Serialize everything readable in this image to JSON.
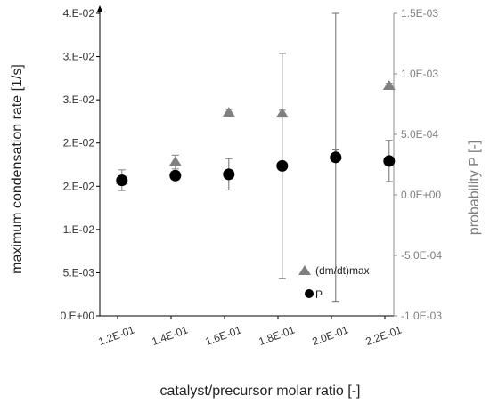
{
  "chart_data": {
    "type": "scatter",
    "xlabel": "catalyst/precursor molar ratio [-]",
    "ylabel_left": "maximum condensation rate [1/s]",
    "ylabel_right": "probability P [-]",
    "x_ticks": [
      "1.2E-01",
      "1.4E-01",
      "1.6E-01",
      "1.8E-01",
      "2.0E-01",
      "2.2E-01"
    ],
    "x_tick_values": [
      0.12,
      0.14,
      0.16,
      0.18,
      0.2,
      0.22
    ],
    "xlim": [
      0.11,
      0.22
    ],
    "y_left_ticks": [
      "0.E+00",
      "5.E-03",
      "1.E-02",
      "2.E-02",
      "2.E-02",
      "3.E-02",
      "3.E-02",
      "4.E-02"
    ],
    "y_left_tick_values": [
      0,
      0.005,
      0.01,
      0.015,
      0.02,
      0.025,
      0.03,
      0.035
    ],
    "ylim_left": [
      0,
      0.035
    ],
    "y_right_ticks": [
      "-1.0E-03",
      "-5.0E-04",
      "0.0E+00",
      "5.0E-04",
      "1.0E-03",
      "1.5E-03"
    ],
    "y_right_tick_values": [
      -0.001,
      -0.0005,
      0,
      0.0005,
      0.001,
      0.0015
    ],
    "ylim_right": [
      -0.001,
      0.0015
    ],
    "grid": false,
    "legend_position": "bottom-right",
    "series": [
      {
        "name": "(dm/dt)max",
        "axis": "left",
        "marker": "triangle",
        "color": "#808080",
        "x": [
          0.1216,
          0.1416,
          0.1616,
          0.1816,
          0.2016,
          0.2216
        ],
        "y": [
          0.0157,
          0.0178,
          0.0235,
          0.0234,
          0.0186,
          0.0266
        ],
        "yerr": [
          0.0012,
          0.0008,
          0.0004,
          0.0004,
          0.0006,
          0.0003
        ]
      },
      {
        "name": "P",
        "axis": "right",
        "marker": "circle",
        "color": "#000000",
        "x": [
          0.1216,
          0.1416,
          0.1616,
          0.1816,
          0.2016,
          0.2216
        ],
        "y": [
          0.00012,
          0.00016,
          0.00017,
          0.00024,
          0.00031,
          0.00028
        ],
        "yerr": [
          3e-05,
          3e-05,
          0.00013,
          0.00093,
          0.00119,
          0.00017
        ]
      }
    ]
  }
}
